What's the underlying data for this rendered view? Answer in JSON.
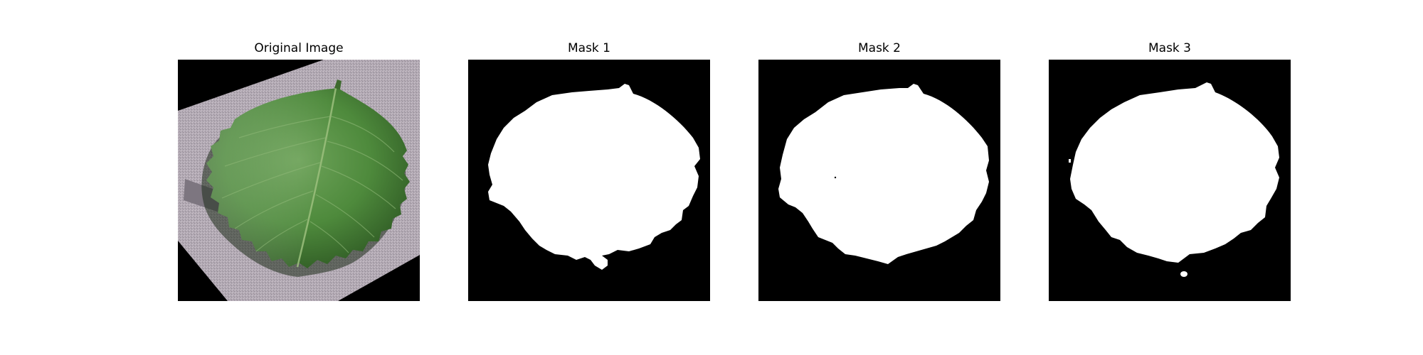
{
  "panels": [
    {
      "title": "Original Image",
      "content": "leaf-photo"
    },
    {
      "title": "Mask 1",
      "content": "binary-mask"
    },
    {
      "title": "Mask 2",
      "content": "binary-mask"
    },
    {
      "title": "Mask 3",
      "content": "binary-mask"
    }
  ],
  "colors": {
    "background": "#ffffff",
    "mask_foreground": "#ffffff",
    "mask_background": "#000000",
    "leaf_dark": "#2f5a24",
    "leaf_mid": "#4e8a3c",
    "leaf_light": "#6ea35a",
    "paper": "#b6adb6"
  }
}
